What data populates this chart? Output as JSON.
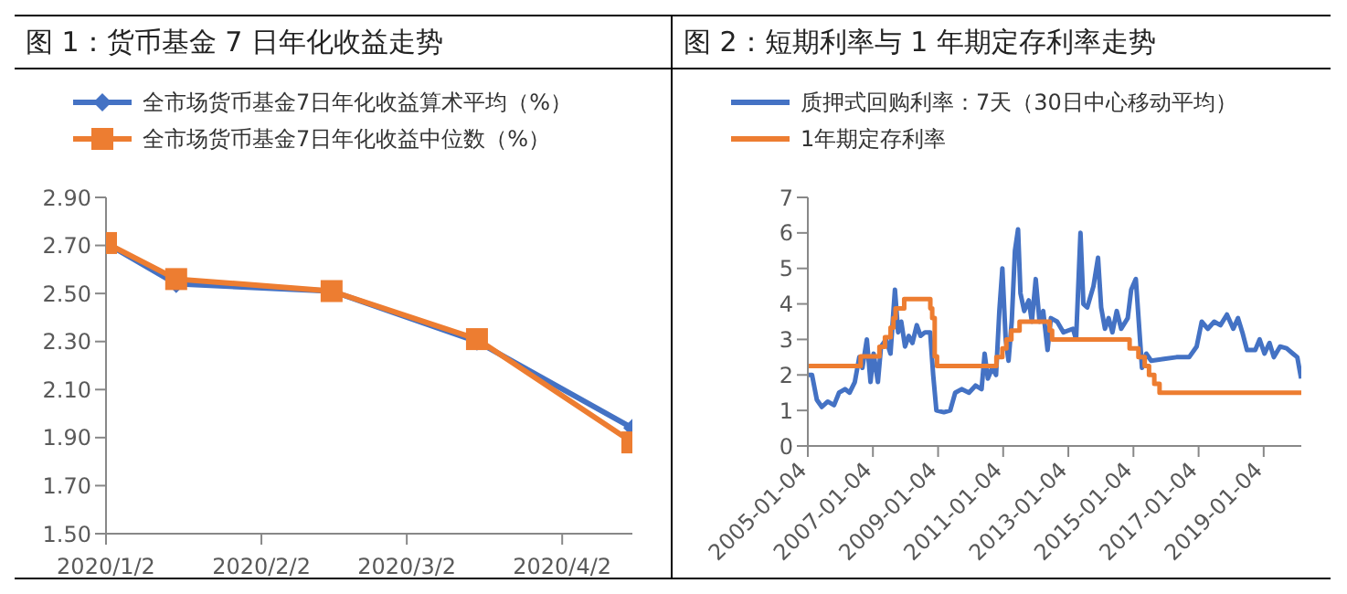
{
  "chart_data": [
    {
      "type": "line",
      "title": "图 1：货币基金 7 日年化收益走势",
      "series": [
        {
          "name": "全市场货币基金7日年化收益算术平均（%）",
          "color": "#4472c4",
          "marker": "diamond",
          "x": [
            "2020-01-02",
            "2020-01-16",
            "2020-02-16",
            "2020-03-16",
            "2020-04-16"
          ],
          "values": [
            2.71,
            2.54,
            2.51,
            2.3,
            1.94
          ]
        },
        {
          "name": "全市场货币基金7日年化收益中位数（%）",
          "color": "#ed7d31",
          "marker": "square",
          "x": [
            "2020-01-02",
            "2020-01-16",
            "2020-02-16",
            "2020-03-16",
            "2020-04-16"
          ],
          "values": [
            2.71,
            2.56,
            2.51,
            2.31,
            1.88
          ]
        }
      ],
      "xlim": [
        "2020-01-02",
        "2020-04-16"
      ],
      "xticks": [
        {
          "value": "2020-01-02",
          "label": "2020/1/2"
        },
        {
          "value": "2020-02-02",
          "label": "2020/2/2"
        },
        {
          "value": "2020-03-02",
          "label": "2020/3/2"
        },
        {
          "value": "2020-04-02",
          "label": "2020/4/2"
        }
      ],
      "ylim": [
        1.5,
        2.9
      ],
      "yticks": [
        {
          "value": 1.5,
          "label": "1.50"
        },
        {
          "value": 1.7,
          "label": "1.70"
        },
        {
          "value": 1.9,
          "label": "1.90"
        },
        {
          "value": 2.1,
          "label": "2.10"
        },
        {
          "value": 2.3,
          "label": "2.30"
        },
        {
          "value": 2.5,
          "label": "2.50"
        },
        {
          "value": 2.7,
          "label": "2.70"
        },
        {
          "value": 2.9,
          "label": "2.90"
        }
      ],
      "legend": "top",
      "grid": false
    },
    {
      "type": "line",
      "title": "图 2：短期利率与 1 年期定存利率走势",
      "series": [
        {
          "name": "质押式回购利率：7天（30日中心移动平均）",
          "color": "#4472c4",
          "marker": "none",
          "x": [
            "2005-01-04",
            "2005-02-20",
            "2005-04-15",
            "2005-06-10",
            "2005-08-15",
            "2005-10-25",
            "2005-12-20",
            "2006-02-25",
            "2006-04-18",
            "2006-06-15",
            "2006-08-04",
            "2006-09-08",
            "2006-10-28",
            "2006-12-08",
            "2007-01-12",
            "2007-03-01",
            "2007-04-05",
            "2007-05-31",
            "2007-07-20",
            "2007-09-08",
            "2007-10-14",
            "2007-11-18",
            "2007-12-30",
            "2008-02-10",
            "2008-03-22",
            "2008-05-10",
            "2008-06-22",
            "2008-08-10",
            "2008-10-07",
            "2008-11-10",
            "2008-12-16",
            "2009-03-10",
            "2009-05-20",
            "2009-07-15",
            "2009-09-25",
            "2009-12-16",
            "2010-02-28",
            "2010-05-07",
            "2010-06-10",
            "2010-07-16",
            "2010-09-04",
            "2010-10-16",
            "2010-11-22",
            "2010-12-26",
            "2011-02-01",
            "2011-03-05",
            "2011-04-10",
            "2011-05-16",
            "2011-06-20",
            "2011-07-17",
            "2011-08-28",
            "2011-10-18",
            "2011-11-22",
            "2012-01-04",
            "2012-02-16",
            "2012-03-28",
            "2012-05-16",
            "2012-06-22",
            "2012-09-01",
            "2012-11-10",
            "2013-02-25",
            "2013-04-01",
            "2013-05-20",
            "2013-06-22",
            "2013-08-04",
            "2013-10-13",
            "2013-12-03",
            "2014-01-07",
            "2014-02-19",
            "2014-04-01",
            "2014-05-13",
            "2014-07-01",
            "2014-08-20",
            "2014-11-01",
            "2014-12-10",
            "2015-01-31",
            "2015-03-05",
            "2015-04-10",
            "2015-05-28",
            "2015-07-22",
            "2015-12-12",
            "2016-05-01",
            "2016-09-20",
            "2016-12-13",
            "2017-02-08",
            "2017-04-18",
            "2017-06-28",
            "2017-09-06",
            "2017-11-18",
            "2018-01-28",
            "2018-03-22",
            "2018-05-10",
            "2018-07-01",
            "2018-10-01",
            "2018-11-19",
            "2019-01-13",
            "2019-03-10",
            "2019-04-28",
            "2019-07-07",
            "2019-09-18",
            "2019-11-28",
            "2020-01-16",
            "2020-02-28"
          ],
          "values": [
            2.0,
            2.0,
            1.3,
            1.1,
            1.25,
            1.15,
            1.5,
            1.6,
            1.5,
            1.8,
            2.5,
            2.2,
            3.0,
            1.8,
            2.6,
            1.8,
            2.8,
            3.0,
            2.6,
            4.4,
            3.2,
            3.5,
            2.8,
            3.1,
            2.9,
            3.4,
            3.1,
            3.2,
            3.2,
            2.0,
            1.0,
            0.95,
            1.0,
            1.5,
            1.6,
            1.5,
            1.7,
            1.6,
            2.6,
            1.9,
            2.2,
            2.0,
            3.8,
            5.0,
            3.0,
            2.4,
            3.5,
            5.5,
            6.1,
            4.3,
            3.8,
            4.1,
            3.5,
            4.7,
            3.5,
            3.8,
            2.7,
            3.6,
            3.5,
            3.2,
            3.3,
            3.0,
            6.0,
            4.0,
            3.9,
            4.5,
            5.3,
            3.9,
            3.3,
            3.6,
            3.2,
            3.8,
            3.3,
            3.6,
            4.4,
            4.7,
            3.5,
            2.2,
            2.6,
            2.4,
            2.45,
            2.5,
            2.5,
            2.8,
            3.5,
            3.3,
            3.5,
            3.4,
            3.7,
            3.3,
            3.6,
            3.2,
            2.7,
            2.7,
            3.0,
            2.6,
            2.9,
            2.5,
            2.8,
            2.75,
            2.6,
            2.5,
            1.9
          ]
        },
        {
          "name": "1年期定存利率",
          "color": "#ed7d31",
          "type": "step",
          "marker": "none",
          "x": [
            "2005-01-04",
            "2006-08-19",
            "2007-03-18",
            "2007-05-19",
            "2007-07-21",
            "2007-08-22",
            "2007-09-15",
            "2007-12-21",
            "2008-10-09",
            "2008-10-30",
            "2008-11-27",
            "2008-12-23",
            "2010-10-20",
            "2010-12-26",
            "2011-02-09",
            "2011-04-06",
            "2011-07-07",
            "2012-06-08",
            "2012-07-06",
            "2014-11-22",
            "2015-03-01",
            "2015-05-11",
            "2015-06-28",
            "2015-08-26",
            "2015-10-24",
            "2020-03-01"
          ],
          "values": [
            2.25,
            2.52,
            2.79,
            3.06,
            3.33,
            3.6,
            3.87,
            4.14,
            3.87,
            3.6,
            2.52,
            2.25,
            2.5,
            2.75,
            3.0,
            3.25,
            3.5,
            3.25,
            3.0,
            2.75,
            2.5,
            2.25,
            2.0,
            1.75,
            1.5,
            1.5
          ]
        }
      ],
      "xlim": [
        "2005-01-04",
        "2020-03-01"
      ],
      "xticks": [
        {
          "value": "2005-01-04",
          "label": "2005-01-04"
        },
        {
          "value": "2007-01-04",
          "label": "2007-01-04"
        },
        {
          "value": "2009-01-04",
          "label": "2009-01-04"
        },
        {
          "value": "2011-01-04",
          "label": "2011-01-04"
        },
        {
          "value": "2013-01-04",
          "label": "2013-01-04"
        },
        {
          "value": "2015-01-04",
          "label": "2015-01-04"
        },
        {
          "value": "2017-01-04",
          "label": "2017-01-04"
        },
        {
          "value": "2019-01-04",
          "label": "2019-01-04"
        }
      ],
      "ylim": [
        0,
        7
      ],
      "yticks": [
        0,
        1,
        2,
        3,
        4,
        5,
        6,
        7
      ],
      "legend": "top",
      "grid": false
    }
  ]
}
